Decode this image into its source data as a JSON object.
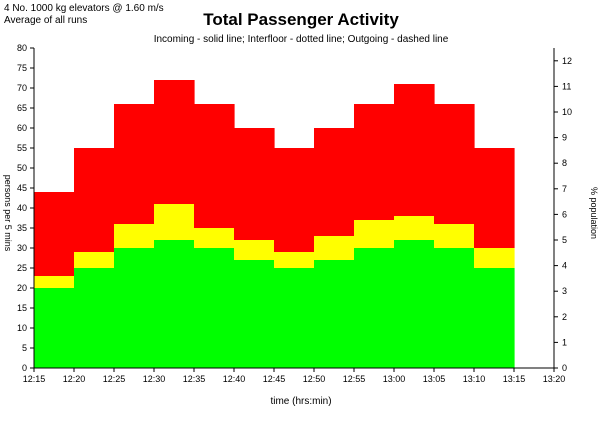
{
  "header": {
    "line1": "4 No. 1000 kg elevators @ 1.60 m/s",
    "line2": "Average of all runs"
  },
  "chart_data": {
    "type": "area",
    "stacked": true,
    "step": true,
    "title": "Total Passenger Activity",
    "subtitle": "Incoming - solid line;  Interfloor - dotted line;  Outgoing - dashed line",
    "xlabel": "time (hrs:min)",
    "ylabel": "persons per 5 mins",
    "ylabel_right": "% population",
    "x_ticks": [
      "12:15",
      "12:20",
      "12:25",
      "12:30",
      "12:35",
      "12:40",
      "12:45",
      "12:50",
      "12:55",
      "13:00",
      "13:05",
      "13:10",
      "13:15",
      "13:20"
    ],
    "ylim": [
      0,
      80
    ],
    "y_ticks": [
      0,
      5,
      10,
      15,
      20,
      25,
      30,
      35,
      40,
      45,
      50,
      55,
      60,
      65,
      70,
      75,
      80
    ],
    "y2lim": [
      0,
      12.5
    ],
    "y2_ticks": [
      0,
      1,
      2,
      3,
      4,
      5,
      6,
      7,
      8,
      9,
      10,
      11,
      12
    ],
    "intervals": [
      "12:15",
      "12:20",
      "12:25",
      "12:30",
      "12:35",
      "12:40",
      "12:45",
      "12:50",
      "12:55",
      "13:00",
      "13:05",
      "13:10"
    ],
    "series": [
      {
        "name": "Incoming",
        "color": "#00ff00",
        "values": [
          20,
          25,
          30,
          32,
          30,
          27,
          25,
          27,
          30,
          32,
          30,
          25
        ]
      },
      {
        "name": "Interfloor",
        "color": "#ffff00",
        "values": [
          3,
          4,
          6,
          9,
          5,
          5,
          4,
          6,
          7,
          6,
          6,
          5
        ]
      },
      {
        "name": "Outgoing",
        "color": "#ff0000",
        "values": [
          21,
          26,
          30,
          31,
          31,
          28,
          26,
          27,
          29,
          33,
          30,
          25
        ]
      }
    ],
    "totals": [
      44,
      55,
      66,
      72,
      66,
      60,
      55,
      60,
      66,
      71,
      66,
      55
    ],
    "grid": false,
    "legend": "none"
  }
}
